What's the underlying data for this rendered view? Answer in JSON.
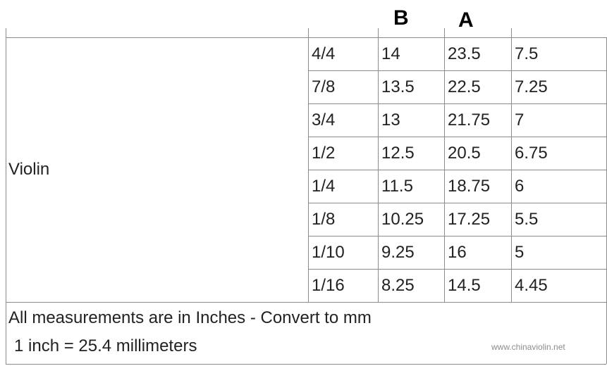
{
  "header": {
    "b": "B",
    "a": "A"
  },
  "table": {
    "group": "Violin",
    "rows": [
      [
        "4/4",
        "14",
        "23.5",
        "7.5"
      ],
      [
        "7/8",
        "13.5",
        "22.5",
        "7.25"
      ],
      [
        "3/4",
        "13",
        "21.75",
        "7"
      ],
      [
        "1/2",
        "12.5",
        "20.5",
        "6.75"
      ],
      [
        "1/4",
        "11.5",
        "18.75",
        "6"
      ],
      [
        "1/8",
        "10.25",
        "17.25",
        "5.5"
      ],
      [
        "1/10",
        "9.25",
        "16",
        "5"
      ],
      [
        "1/16",
        "8.25",
        "14.5",
        "4.45"
      ]
    ]
  },
  "footer": {
    "line1": "All measurements are in Inches - Convert to mm",
    "line2": " 1 inch = 25.4 millimeters",
    "watermark": "www.chinaviolin.net"
  }
}
